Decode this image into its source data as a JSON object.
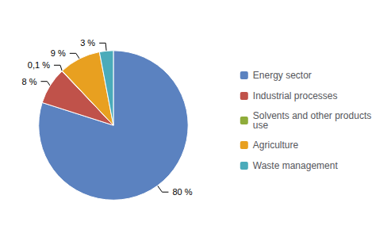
{
  "chart_data": {
    "type": "pie",
    "categories": [
      "Energy sector",
      "Industrial processes",
      "Solvents and other products\nuse",
      "Agriculture",
      "Waste management"
    ],
    "values": [
      80,
      8,
      0.1,
      9,
      3
    ],
    "value_labels": [
      "80 %",
      "8 %",
      "0,1 %",
      "9 %",
      "3 %"
    ],
    "colors": [
      "#5b82c0",
      "#c0524a",
      "#8fac3a",
      "#e8a020",
      "#4aabba"
    ],
    "data_labels": true,
    "legend": "right"
  }
}
